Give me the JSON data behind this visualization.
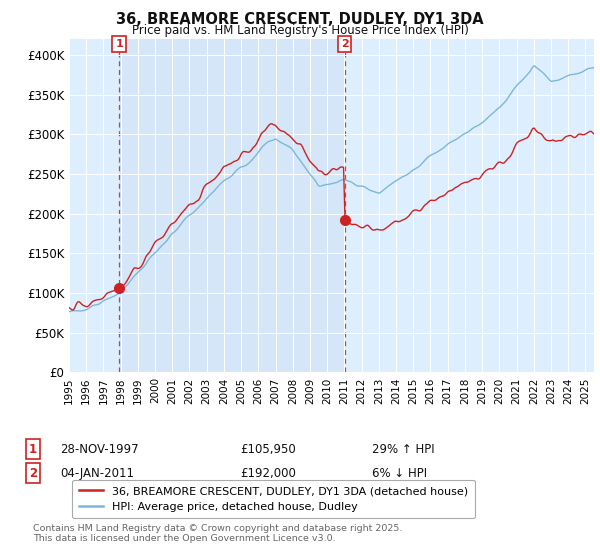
{
  "title": "36, BREAMORE CRESCENT, DUDLEY, DY1 3DA",
  "subtitle": "Price paid vs. HM Land Registry's House Price Index (HPI)",
  "ylim": [
    0,
    420000
  ],
  "yticks": [
    0,
    50000,
    100000,
    150000,
    200000,
    250000,
    300000,
    350000,
    400000
  ],
  "ytick_labels": [
    "£0",
    "£50K",
    "£100K",
    "£150K",
    "£200K",
    "£250K",
    "£300K",
    "£350K",
    "£400K"
  ],
  "hpi_color": "#7db8d8",
  "price_color": "#cc2222",
  "sale1_date": 1997.91,
  "sale1_price": 105950,
  "sale2_date": 2011.01,
  "sale2_price": 192000,
  "legend_line1": "36, BREAMORE CRESCENT, DUDLEY, DY1 3DA (detached house)",
  "legend_line2": "HPI: Average price, detached house, Dudley",
  "annotation1_num": "1",
  "annotation1_date": "28-NOV-1997",
  "annotation1_price": "£105,950",
  "annotation1_hpi": "29% ↑ HPI",
  "annotation2_num": "2",
  "annotation2_date": "04-JAN-2011",
  "annotation2_price": "£192,000",
  "annotation2_hpi": "6% ↓ HPI",
  "footer": "Contains HM Land Registry data © Crown copyright and database right 2025.\nThis data is licensed under the Open Government Licence v3.0.",
  "bg_color": "#ffffff",
  "plot_bg_color": "#ddeeff",
  "shade_color": "#cce0f0"
}
